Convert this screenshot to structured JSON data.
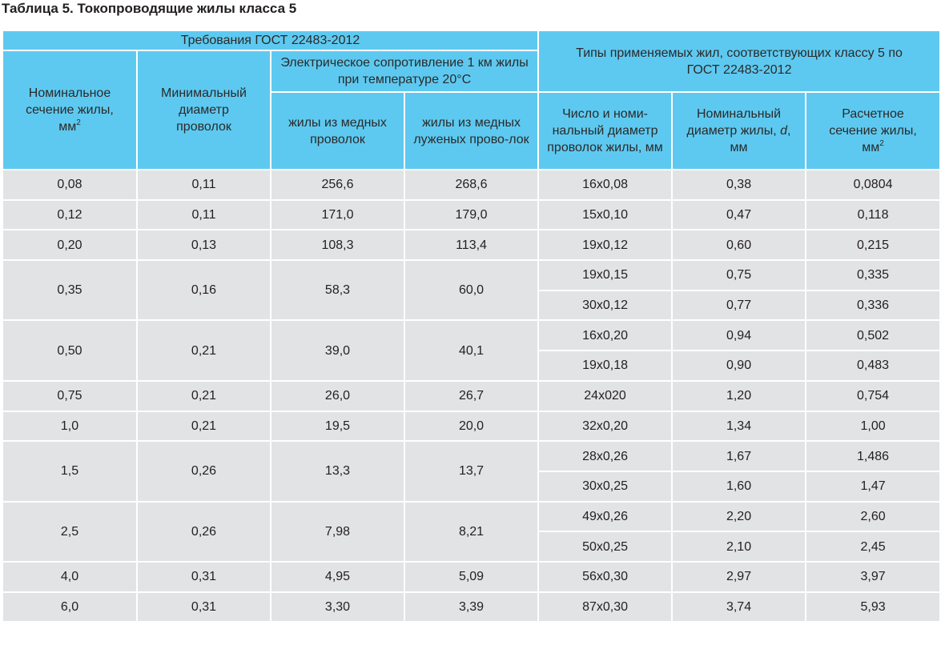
{
  "title": "Таблица 5. Токопроводящие жилы класса 5",
  "header": {
    "gost_requirements": "Требования ГОСТ 22483-2012",
    "types_group": "Типы применяемых жил, соответствующих классу 5 по ГОСТ 22483-2012",
    "resistance_group": "Электрическое сопротивление 1 км жилы при температуре 20°С",
    "nominal_section": "Номинальное сечение жилы, мм",
    "min_diameter": "Минимальный диаметр проволок",
    "copper_wires": "жилы из медных проволок",
    "tinned_copper_wires": "жилы из медных луженых прово-лок",
    "wire_count_diameter": "Число и номи-нальный диаметр проволок жилы, мм",
    "nominal_diameter_prefix": "Номинальный диаметр жилы,",
    "nominal_diameter_var": "d",
    "nominal_diameter_unit": ", мм",
    "calc_section": "Расчетное сечение жилы, мм",
    "sup2": "2"
  },
  "rows": [
    {
      "section": "0,08",
      "min_d": "0,11",
      "r_cu": "256,6",
      "r_tin": "268,6",
      "variants": [
        {
          "wires": "16x0,08",
          "d": "0,38",
          "calc": "0,0804"
        }
      ]
    },
    {
      "section": "0,12",
      "min_d": "0,11",
      "r_cu": "171,0",
      "r_tin": "179,0",
      "variants": [
        {
          "wires": "15x0,10",
          "d": "0,47",
          "calc": "0,118"
        }
      ]
    },
    {
      "section": "0,20",
      "min_d": "0,13",
      "r_cu": "108,3",
      "r_tin": "113,4",
      "variants": [
        {
          "wires": "19x0,12",
          "d": "0,60",
          "calc": "0,215"
        }
      ]
    },
    {
      "section": "0,35",
      "min_d": "0,16",
      "r_cu": "58,3",
      "r_tin": "60,0",
      "variants": [
        {
          "wires": "19x0,15",
          "d": "0,75",
          "calc": "0,335"
        },
        {
          "wires": "30x0,12",
          "d": "0,77",
          "calc": "0,336"
        }
      ]
    },
    {
      "section": "0,50",
      "min_d": "0,21",
      "r_cu": "39,0",
      "r_tin": "40,1",
      "variants": [
        {
          "wires": "16x0,20",
          "d": "0,94",
          "calc": "0,502"
        },
        {
          "wires": "19x0,18",
          "d": "0,90",
          "calc": "0,483"
        }
      ]
    },
    {
      "section": "0,75",
      "min_d": "0,21",
      "r_cu": "26,0",
      "r_tin": "26,7",
      "variants": [
        {
          "wires": "24x020",
          "d": "1,20",
          "calc": "0,754"
        }
      ]
    },
    {
      "section": "1,0",
      "min_d": "0,21",
      "r_cu": "19,5",
      "r_tin": "20,0",
      "variants": [
        {
          "wires": "32x0,20",
          "d": "1,34",
          "calc": "1,00"
        }
      ]
    },
    {
      "section": "1,5",
      "min_d": "0,26",
      "r_cu": "13,3",
      "r_tin": "13,7",
      "variants": [
        {
          "wires": "28x0,26",
          "d": "1,67",
          "calc": "1,486"
        },
        {
          "wires": "30x0,25",
          "d": "1,60",
          "calc": "1,47"
        }
      ]
    },
    {
      "section": "2,5",
      "min_d": "0,26",
      "r_cu": "7,98",
      "r_tin": "8,21",
      "variants": [
        {
          "wires": "49x0,26",
          "d": "2,20",
          "calc": "2,60"
        },
        {
          "wires": "50x0,25",
          "d": "2,10",
          "calc": "2,45"
        }
      ]
    },
    {
      "section": "4,0",
      "min_d": "0,31",
      "r_cu": "4,95",
      "r_tin": "5,09",
      "variants": [
        {
          "wires": "56x0,30",
          "d": "2,97",
          "calc": "3,97"
        }
      ]
    },
    {
      "section": "6,0",
      "min_d": "0,31",
      "r_cu": "3,30",
      "r_tin": "3,39",
      "variants": [
        {
          "wires": "87x0,30",
          "d": "3,74",
          "calc": "5,93"
        }
      ]
    }
  ],
  "colors": {
    "header_bg": "#5ec9f0",
    "row_bg": "#e2e3e4"
  }
}
